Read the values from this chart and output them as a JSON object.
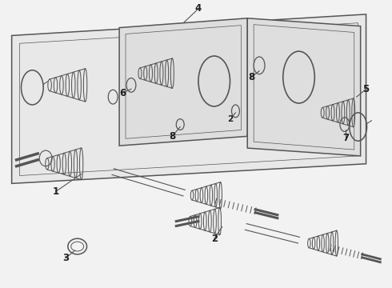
{
  "bg_color": "#f2f2f2",
  "line_color": "#555555",
  "label_color": "#222222",
  "figsize": [
    4.9,
    3.6
  ],
  "dpi": 100,
  "lw_main": 1.1,
  "lw_thin": 0.75
}
